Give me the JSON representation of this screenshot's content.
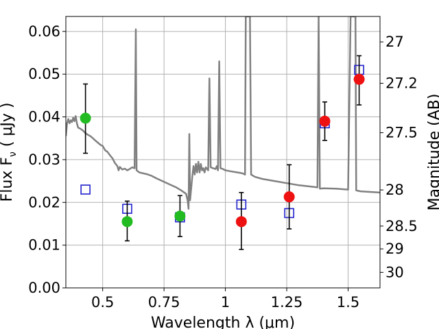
{
  "chart_data": {
    "type": "scatter",
    "title": "",
    "xlabel": "Wavelength  λ (μm)",
    "ylabel": "Flux  F",
    "ylabel_sub": "ν",
    "ylabel_unit": "  ( μJy )",
    "y2label": "Magnitude (AB)",
    "xlim": [
      0.35,
      1.63
    ],
    "ylim": [
      0,
      0.0635
    ],
    "grid": true,
    "x_ticks": [
      {
        "value": 0.5,
        "label": "0.5"
      },
      {
        "value": 0.75,
        "label": "0.75"
      },
      {
        "value": 1.0,
        "label": "1"
      },
      {
        "value": 1.25,
        "label": "1.25"
      },
      {
        "value": 1.5,
        "label": "1.5"
      }
    ],
    "y_ticks": [
      {
        "value": 0.0,
        "label": "0.00"
      },
      {
        "value": 0.01,
        "label": "0.01"
      },
      {
        "value": 0.02,
        "label": "0.02"
      },
      {
        "value": 0.03,
        "label": "0.03"
      },
      {
        "value": 0.04,
        "label": "0.04"
      },
      {
        "value": 0.05,
        "label": "0.05"
      },
      {
        "value": 0.06,
        "label": "0.06"
      }
    ],
    "y2_ticks": [
      {
        "mag": 27,
        "label": "27"
      },
      {
        "mag": 27.2,
        "label": "27.2"
      },
      {
        "mag": 27.5,
        "label": "27.5"
      },
      {
        "mag": 28,
        "label": "28"
      },
      {
        "mag": 28.5,
        "label": "28.5"
      },
      {
        "mag": 29,
        "label": "29"
      },
      {
        "mag": 30,
        "label": "30"
      }
    ],
    "series": [
      {
        "kind": "spectrum",
        "color": "#808080",
        "points": [
          [
            0.35,
            0.0355
          ],
          [
            0.355,
            0.0385
          ],
          [
            0.36,
            0.0395
          ],
          [
            0.365,
            0.0385
          ],
          [
            0.37,
            0.0392
          ],
          [
            0.375,
            0.0388
          ],
          [
            0.38,
            0.0398
          ],
          [
            0.385,
            0.039
          ],
          [
            0.39,
            0.0402
          ],
          [
            0.395,
            0.0385
          ],
          [
            0.4,
            0.0375
          ],
          [
            0.41,
            0.0372
          ],
          [
            0.42,
            0.0368
          ],
          [
            0.43,
            0.0362
          ],
          [
            0.44,
            0.0358
          ],
          [
            0.45,
            0.0355
          ],
          [
            0.46,
            0.035
          ],
          [
            0.47,
            0.0345
          ],
          [
            0.48,
            0.034
          ],
          [
            0.49,
            0.0335
          ],
          [
            0.5,
            0.0332
          ],
          [
            0.51,
            0.0322
          ],
          [
            0.52,
            0.0318
          ],
          [
            0.53,
            0.031
          ],
          [
            0.54,
            0.0303
          ],
          [
            0.55,
            0.0292
          ],
          [
            0.56,
            0.0285
          ],
          [
            0.565,
            0.0275
          ],
          [
            0.57,
            0.0283
          ],
          [
            0.58,
            0.0277
          ],
          [
            0.59,
            0.0279
          ],
          [
            0.6,
            0.0275
          ],
          [
            0.61,
            0.0278
          ],
          [
            0.62,
            0.0282
          ],
          [
            0.63,
            0.028
          ],
          [
            0.635,
            0.0605
          ],
          [
            0.638,
            0.0275
          ],
          [
            0.65,
            0.027
          ],
          [
            0.68,
            0.0266
          ],
          [
            0.7,
            0.0262
          ],
          [
            0.72,
            0.0256
          ],
          [
            0.75,
            0.0248
          ],
          [
            0.78,
            0.024
          ],
          [
            0.8,
            0.0235
          ],
          [
            0.82,
            0.0228
          ],
          [
            0.84,
            0.022
          ],
          [
            0.846,
            0.0205
          ],
          [
            0.85,
            0.0185
          ],
          [
            0.853,
            0.036
          ],
          [
            0.856,
            0.0205
          ],
          [
            0.865,
            0.026
          ],
          [
            0.87,
            0.0285
          ],
          [
            0.875,
            0.0265
          ],
          [
            0.88,
            0.029
          ],
          [
            0.885,
            0.027
          ],
          [
            0.89,
            0.0295
          ],
          [
            0.895,
            0.027
          ],
          [
            0.9,
            0.029
          ],
          [
            0.905,
            0.0275
          ],
          [
            0.91,
            0.028
          ],
          [
            0.915,
            0.027
          ],
          [
            0.92,
            0.0282
          ],
          [
            0.93,
            0.0275
          ],
          [
            0.935,
            0.049
          ],
          [
            0.94,
            0.0282
          ],
          [
            0.95,
            0.028
          ],
          [
            0.96,
            0.0278
          ],
          [
            0.965,
            0.0285
          ],
          [
            0.97,
            0.0275
          ],
          [
            0.975,
            0.053
          ],
          [
            0.98,
            0.028
          ],
          [
            0.99,
            0.0278
          ],
          [
            1.0,
            0.0275
          ],
          [
            1.02,
            0.0273
          ],
          [
            1.05,
            0.027
          ],
          [
            1.07,
            0.0268
          ],
          [
            1.08,
            0.0265
          ],
          [
            1.083,
            0.0635
          ],
          [
            1.1,
            0.0635
          ],
          [
            1.105,
            0.0265
          ],
          [
            1.12,
            0.026
          ],
          [
            1.15,
            0.0255
          ],
          [
            1.2,
            0.025
          ],
          [
            1.25,
            0.0245
          ],
          [
            1.3,
            0.024
          ],
          [
            1.35,
            0.0237
          ],
          [
            1.375,
            0.0235
          ],
          [
            1.38,
            0.0635
          ],
          [
            1.385,
            0.0232
          ],
          [
            1.4,
            0.0233
          ],
          [
            1.45,
            0.0232
          ],
          [
            1.5,
            0.023
          ],
          [
            1.51,
            0.0635
          ],
          [
            1.53,
            0.0635
          ],
          [
            1.533,
            0.0228
          ],
          [
            1.55,
            0.0226
          ],
          [
            1.6,
            0.0224
          ],
          [
            1.63,
            0.0223
          ]
        ]
      },
      {
        "kind": "model",
        "color": "#1f1fcc",
        "shape": "open-square",
        "points": [
          [
            0.43,
            0.023
          ],
          [
            0.6,
            0.0185
          ],
          [
            0.815,
            0.0165
          ],
          [
            1.065,
            0.0195
          ],
          [
            1.26,
            0.0175
          ],
          [
            1.405,
            0.0385
          ],
          [
            1.545,
            0.051
          ]
        ]
      },
      {
        "kind": "observed",
        "shape": "filled-circle",
        "points": [
          {
            "x": 0.43,
            "y": 0.0397,
            "err_low": 0.0082,
            "err_high": 0.008,
            "color": "#22bb22"
          },
          {
            "x": 0.6,
            "y": 0.0155,
            "err_low": 0.0045,
            "err_high": 0.0048,
            "color": "#22bb22"
          },
          {
            "x": 0.815,
            "y": 0.0168,
            "err_low": 0.0048,
            "err_high": 0.0048,
            "color": "#22bb22"
          },
          {
            "x": 1.065,
            "y": 0.0155,
            "err_low": 0.0065,
            "err_high": 0.0068,
            "color": "#ee1111"
          },
          {
            "x": 1.26,
            "y": 0.0213,
            "err_low": 0.0075,
            "err_high": 0.0075,
            "color": "#ee1111"
          },
          {
            "x": 1.405,
            "y": 0.039,
            "err_low": 0.0045,
            "err_high": 0.0045,
            "color": "#ee1111"
          },
          {
            "x": 1.545,
            "y": 0.0488,
            "err_low": 0.006,
            "err_high": 0.0055,
            "color": "#ee1111"
          }
        ]
      }
    ]
  }
}
